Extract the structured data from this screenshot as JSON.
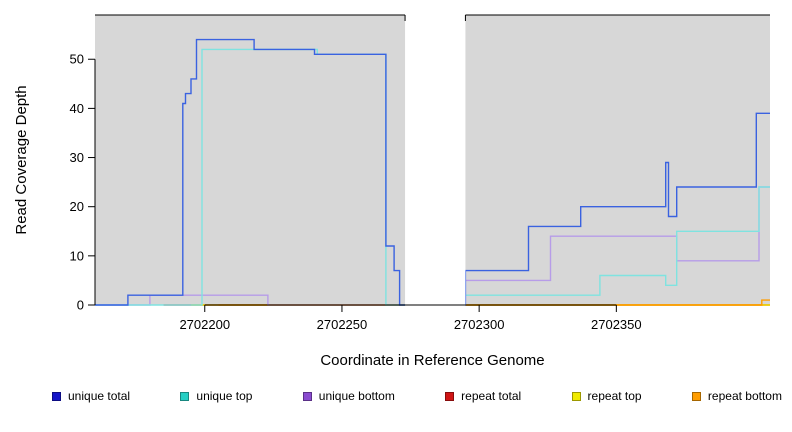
{
  "chart_data": {
    "type": "line",
    "title": "",
    "xlabel": "Coordinate in Reference Genome",
    "ylabel": "Read Coverage Depth",
    "xlim": [
      2702160,
      2702406
    ],
    "ylim": [
      0,
      59
    ],
    "xticks": [
      2702200,
      2702250,
      2702300,
      2702350
    ],
    "yticks": [
      0,
      10,
      20,
      30,
      40,
      50
    ],
    "plot_bg": "#d7d7d7",
    "masked_region": [
      2702273,
      2702295
    ],
    "grid": false,
    "legend_position": "bottom",
    "series": [
      {
        "name": "repeat total",
        "color": "#d01515",
        "legend_color": "#d01515",
        "steps": [
          [
            2702185,
            0
          ]
        ],
        "end": 2702406
      },
      {
        "name": "repeat top",
        "color": "#f0ea00",
        "legend_color": "#f0ea00",
        "steps": [
          [
            2702195,
            0
          ]
        ],
        "end": 2702406
      },
      {
        "name": "repeat bottom",
        "color": "#ff9d00",
        "legend_color": "#ff9d00",
        "steps": [
          [
            2702205,
            0
          ],
          [
            2702403,
            1
          ]
        ],
        "end": 2702406
      },
      {
        "name": "unique bottom",
        "color": "#b79ce8",
        "legend_color": "#8a4bd0",
        "steps": [
          [
            2702160,
            0
          ],
          [
            2702180,
            2
          ],
          [
            2702223,
            0
          ],
          [
            2702295,
            5
          ],
          [
            2702326,
            14
          ],
          [
            2702372,
            9
          ],
          [
            2702402,
            24
          ]
        ],
        "end": 2702406
      },
      {
        "name": "unique top",
        "color": "#7fe3e0",
        "legend_color": "#25cfc4",
        "steps": [
          [
            2702160,
            0
          ],
          [
            2702199,
            52
          ],
          [
            2702241,
            51
          ],
          [
            2702266,
            0
          ],
          [
            2702290,
            2
          ],
          [
            2702344,
            6
          ],
          [
            2702368,
            4
          ],
          [
            2702372,
            15
          ],
          [
            2702402,
            24
          ]
        ],
        "end": 2702406
      },
      {
        "name": "unique total",
        "color": "#3a62e0",
        "legend_color": "#1515c8",
        "steps": [
          [
            2702160,
            0
          ],
          [
            2702172,
            2
          ],
          [
            2702192,
            41
          ],
          [
            2702193,
            43
          ],
          [
            2702195,
            46
          ],
          [
            2702197,
            54
          ],
          [
            2702218,
            52
          ],
          [
            2702240,
            51
          ],
          [
            2702266,
            12
          ],
          [
            2702269,
            7
          ],
          [
            2702271,
            0
          ],
          [
            2702295,
            7
          ],
          [
            2702318,
            16
          ],
          [
            2702337,
            20
          ],
          [
            2702368,
            29
          ],
          [
            2702369,
            18
          ],
          [
            2702372,
            24
          ],
          [
            2702401,
            39
          ]
        ],
        "end": 2702406
      }
    ],
    "legend_order": [
      "unique total",
      "unique top",
      "unique bottom",
      "repeat total",
      "repeat top",
      "repeat bottom"
    ]
  }
}
